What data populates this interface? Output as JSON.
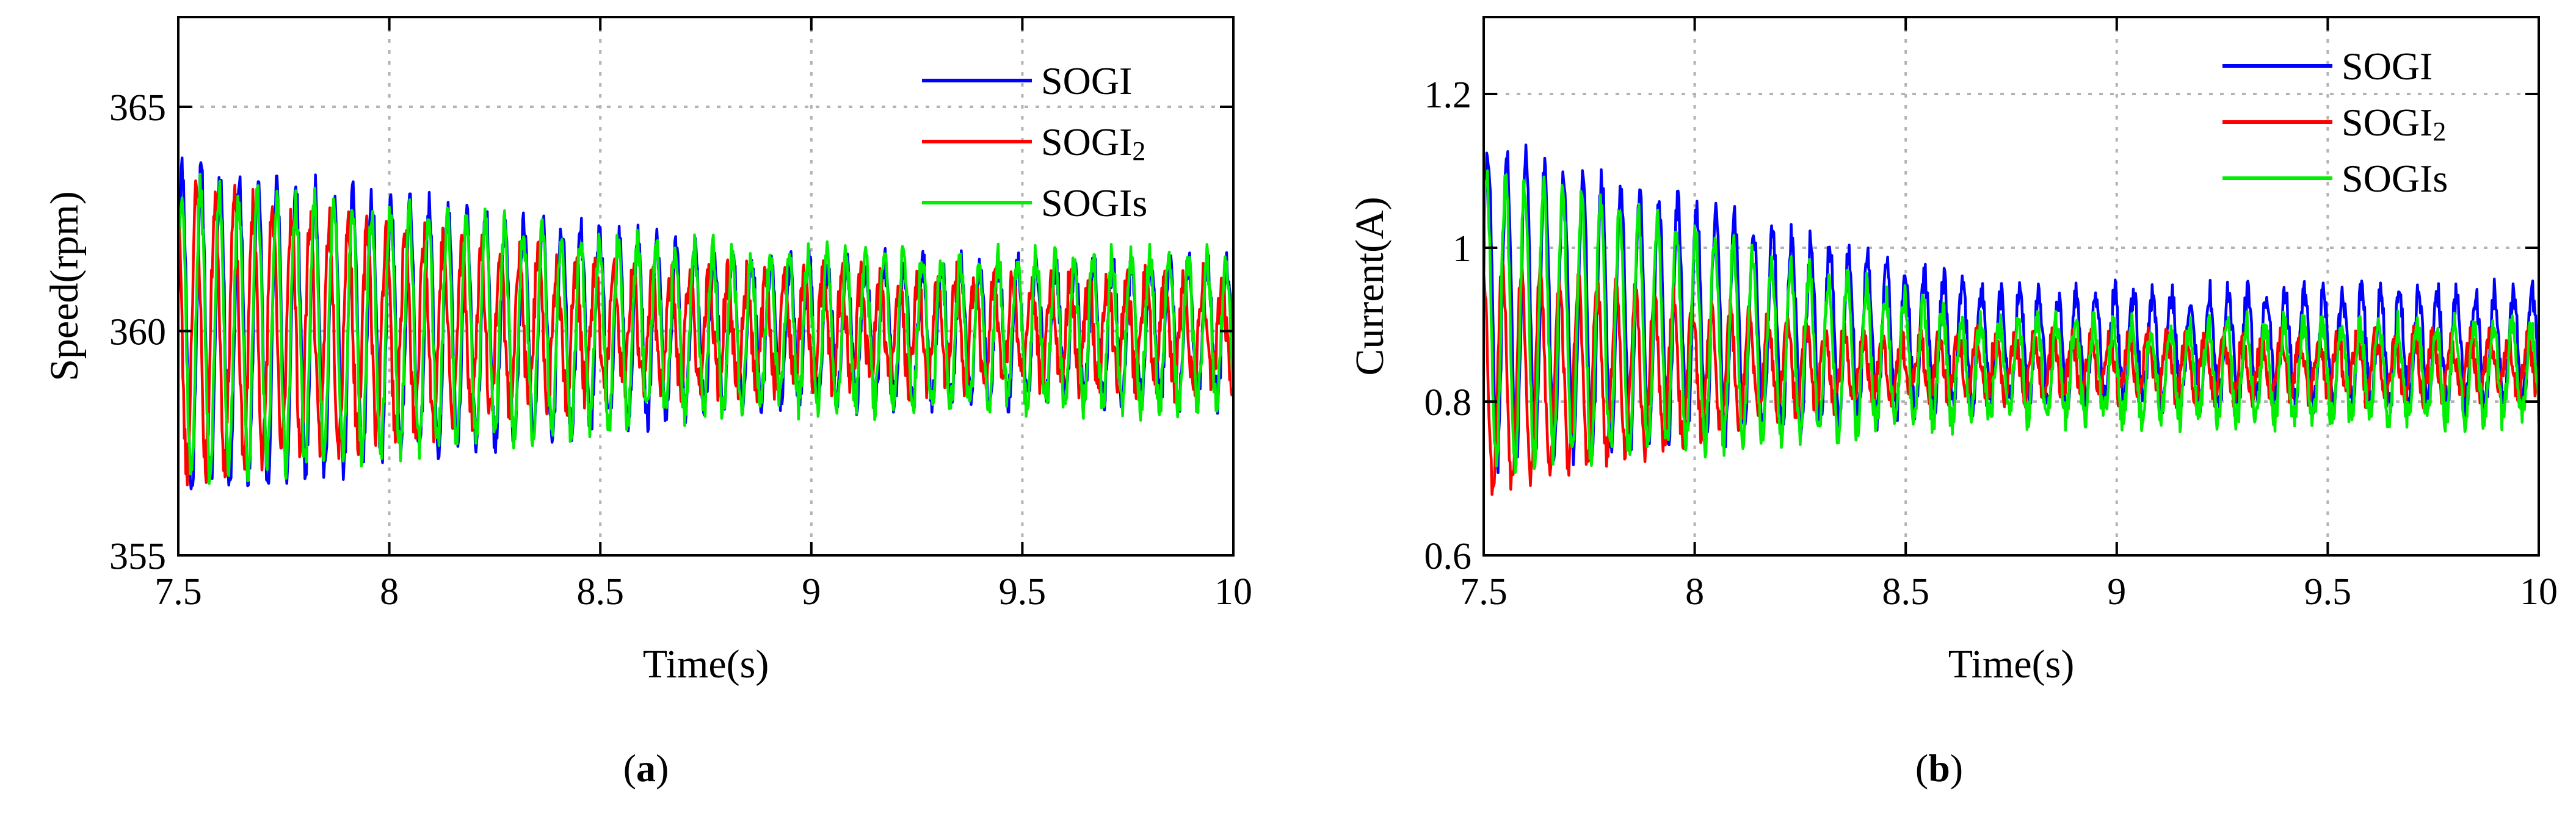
{
  "colors": {
    "SOGI": "#0000ff",
    "SOGI2": "#ff0000",
    "SOGIs": "#00ee00",
    "grid": "#b3b3b3",
    "axis": "#000000"
  },
  "chart_data": [
    {
      "type": "line",
      "id": "speed",
      "caption_open": "(",
      "caption_letter": "a",
      "caption_close": ")",
      "xlabel": "Time(s)",
      "ylabel": "Speed(rpm)",
      "xlim": [
        7.5,
        10
      ],
      "ylim": [
        355,
        367
      ],
      "xticks": [
        7.5,
        8,
        8.5,
        9,
        9.5,
        10
      ],
      "xtick_labels": [
        "7.5",
        "8",
        "8.5",
        "9",
        "9.5",
        "10"
      ],
      "yticks": [
        355,
        360,
        365
      ],
      "ytick_labels": [
        "355",
        "360",
        "365"
      ],
      "grid": true,
      "legend_position": "top-right",
      "series": [
        {
          "name": "SOGI",
          "legend_base": "SOGI",
          "legend_sub": "",
          "color_key": "SOGI",
          "center": 360,
          "amp_start": 3.6,
          "amp_end": 1.5,
          "decay_at": 8.9,
          "noise": 0.4,
          "period": 0.045,
          "phase": 0.3,
          "seed": 11
        },
        {
          "name": "SOGI2",
          "legend_base": "SOGI",
          "legend_sub": "2",
          "color_key": "SOGI2",
          "center": 360,
          "amp_start": 3.1,
          "amp_end": 1.1,
          "decay_at": 8.6,
          "noise": 0.5,
          "period": 0.045,
          "phase": 1.9,
          "seed": 23
        },
        {
          "name": "SOGIs",
          "legend_base": "SOGIs",
          "legend_sub": "",
          "color_key": "SOGIs",
          "center": 360,
          "amp_start": 3.2,
          "amp_end": 1.6,
          "decay_at": 8.9,
          "noise": 0.4,
          "period": 0.045,
          "phase": 0.5,
          "seed": 37
        }
      ]
    },
    {
      "type": "line",
      "id": "current",
      "caption_open": "(",
      "caption_letter": "b",
      "caption_close": ")",
      "xlabel": "Time(s)",
      "ylabel": "Current(A)",
      "xlim": [
        7.5,
        10
      ],
      "ylim": [
        0.6,
        1.3
      ],
      "xticks": [
        7.5,
        8,
        8.5,
        9,
        9.5,
        10
      ],
      "xtick_labels": [
        "7.5",
        "8",
        "8.5",
        "9",
        "9.5",
        "10"
      ],
      "yticks": [
        0.6,
        0.8,
        1.0,
        1.2
      ],
      "ytick_labels": [
        "0.6",
        "0.8",
        "1",
        "1.2"
      ],
      "grid": true,
      "legend_position": "top-right",
      "series": [
        {
          "name": "SOGI",
          "legend_base": "SOGI",
          "legend_sub": "",
          "color_key": "SOGI",
          "lo_start": 0.72,
          "hi_start": 1.13,
          "lo_end": 0.8,
          "hi_end": 0.94,
          "decay_at": 8.7,
          "noise": 0.02,
          "period": 0.045,
          "phase": 0.2,
          "seed": 41
        },
        {
          "name": "SOGI2",
          "legend_base": "SOGI",
          "legend_sub": "2",
          "color_key": "SOGI2",
          "lo_start": 0.69,
          "hi_start": 0.98,
          "lo_end": 0.81,
          "hi_end": 0.88,
          "decay_at": 8.4,
          "noise": 0.02,
          "period": 0.045,
          "phase": 1.7,
          "seed": 53
        },
        {
          "name": "SOGIs",
          "legend_base": "SOGIs",
          "legend_sub": "",
          "color_key": "SOGIs",
          "lo_start": 0.72,
          "hi_start": 1.1,
          "lo_end": 0.78,
          "hi_end": 0.9,
          "decay_at": 8.7,
          "noise": 0.02,
          "period": 0.045,
          "phase": 0.6,
          "seed": 67
        }
      ]
    }
  ]
}
